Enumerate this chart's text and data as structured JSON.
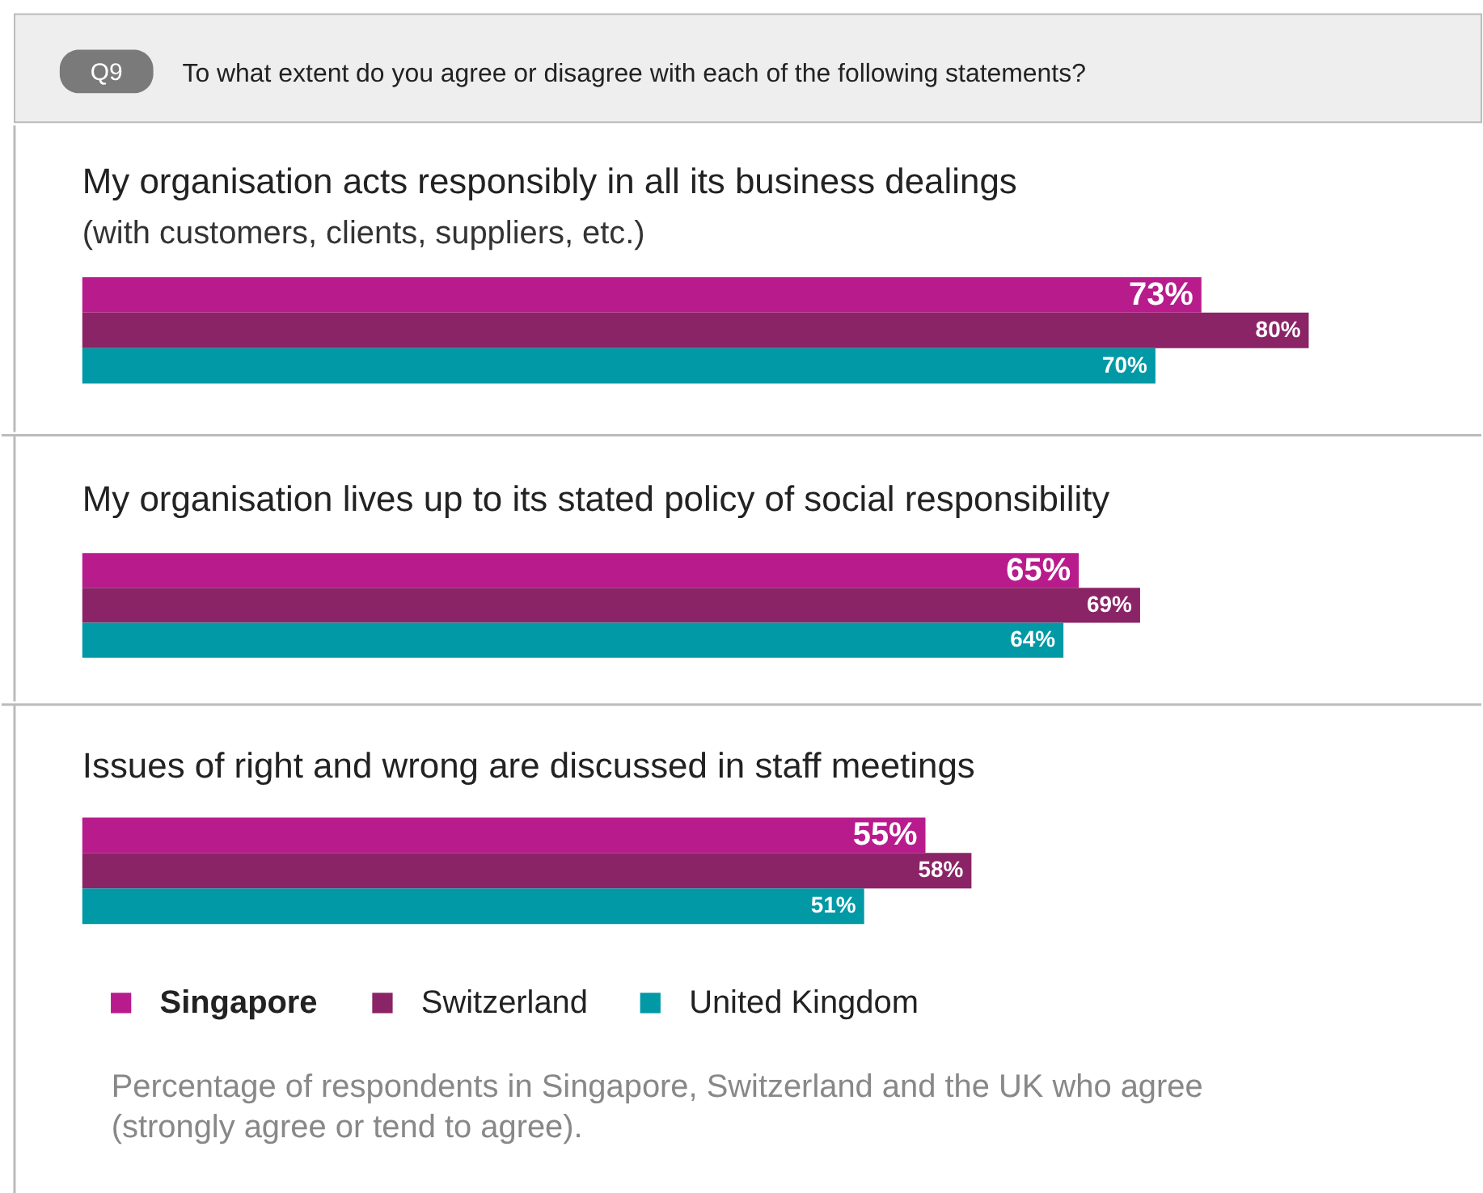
{
  "chart_data": [
    {
      "type": "bar",
      "orientation": "horizontal",
      "title": "My organisation acts responsibly in all its business dealings",
      "subtitle": "(with customers, clients, suppliers, etc.)",
      "annotations": [
        "Q9",
        "To what extent do you agree or disagree with each of the following statements?"
      ],
      "categories": [
        null
      ],
      "series": [
        {
          "color": "#b81c8c",
          "values": [
            73
          ],
          "value_labels": [
            "73%"
          ]
        },
        {
          "color": "#8a2466",
          "values": [
            80
          ],
          "value_labels": [
            "80%"
          ]
        },
        {
          "color": "#0099a5",
          "values": [
            70
          ],
          "value_labels": [
            "70%"
          ]
        }
      ]
    },
    {
      "type": "bar",
      "orientation": "horizontal",
      "title": "My organisation lives up to its stated policy of social responsibility",
      "categories": [
        null
      ],
      "series": [
        {
          "color": "#b81c8c",
          "values": [
            65
          ],
          "value_labels": [
            "65%"
          ]
        },
        {
          "color": "#8a2466",
          "values": [
            69
          ],
          "value_labels": [
            "69%"
          ]
        },
        {
          "color": "#0099a5",
          "values": [
            64
          ],
          "value_labels": [
            "64%"
          ]
        }
      ]
    },
    {
      "type": "bar",
      "orientation": "horizontal",
      "title": "Issues of right and wrong are discussed in staff meetings",
      "categories": [
        null
      ],
      "legend": "bottom",
      "annotations": [
        "Percentage of respondents in Singapore, Switzerland and the UK who agree",
        "(strongly agree or tend to agree)."
      ],
      "series": [
        {
          "name": "Singapore",
          "color": "#b81c8c",
          "values": [
            55
          ],
          "value_labels": [
            "55%"
          ]
        },
        {
          "name": "Switzerland",
          "color": "#8a2466",
          "values": [
            58
          ],
          "value_labels": [
            "58%"
          ]
        },
        {
          "name": "United Kingdom",
          "color": "#0099a5",
          "values": [
            51
          ],
          "value_labels": [
            "51%"
          ]
        }
      ]
    }
  ]
}
